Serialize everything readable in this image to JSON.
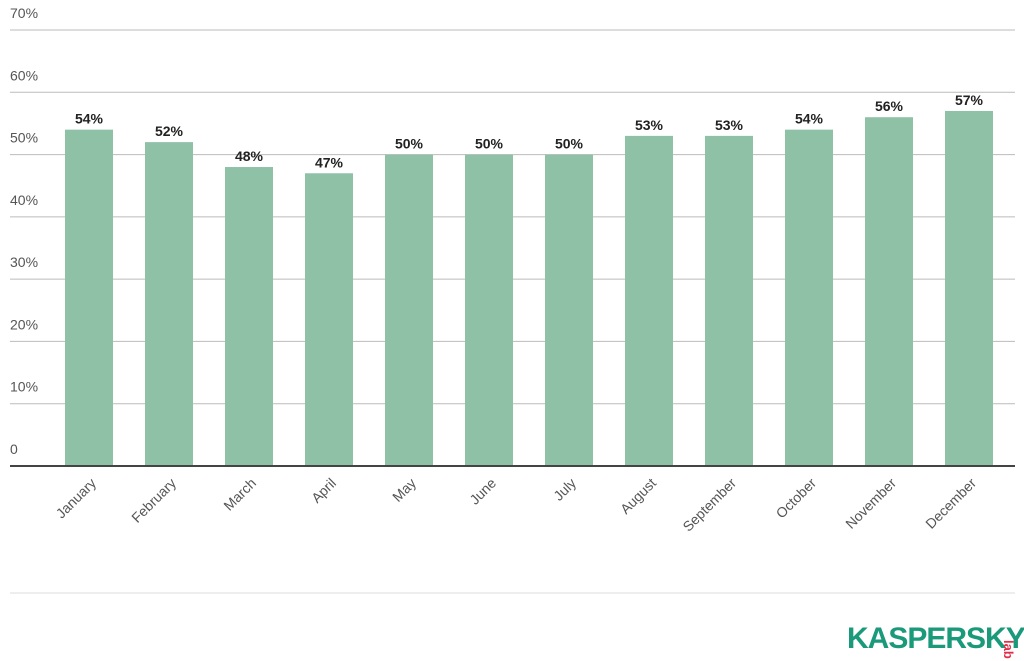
{
  "chart_data": {
    "type": "bar",
    "categories": [
      "January",
      "February",
      "March",
      "April",
      "May",
      "June",
      "July",
      "August",
      "September",
      "October",
      "November",
      "December"
    ],
    "values": [
      54,
      52,
      48,
      47,
      50,
      50,
      50,
      53,
      53,
      54,
      56,
      57
    ],
    "value_labels": [
      "54%",
      "52%",
      "48%",
      "47%",
      "50%",
      "50%",
      "50%",
      "53%",
      "53%",
      "54%",
      "56%",
      "57%"
    ],
    "color": "#8fc1a7",
    "ylim": [
      0,
      70
    ],
    "yticks": [
      0,
      {
        "value": 10,
        "label": "10%"
      },
      {
        "value": 20,
        "label": "20%"
      },
      {
        "value": 30,
        "label": "30%"
      },
      {
        "value": 40,
        "label": "40%"
      },
      {
        "value": 50,
        "label": "50%"
      },
      {
        "value": 60,
        "label": "60%"
      },
      {
        "value": 70,
        "label": "70%"
      }
    ],
    "grid": true
  },
  "logo": {
    "name": "KASPERSKY",
    "sub": "lab"
  }
}
